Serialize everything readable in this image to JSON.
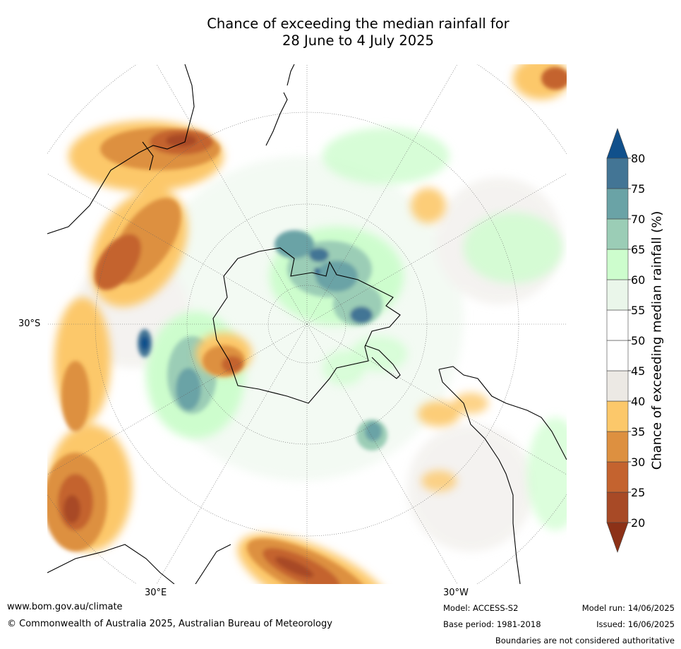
{
  "title_line1": "Chance of exceeding the median rainfall for",
  "title_line2": "28 June to 4 July 2025",
  "map": {
    "projection": "south-polar-stereographic",
    "graticule_labels": {
      "left": "30°S",
      "bottom_left": "30°E",
      "bottom_right": "30°W"
    }
  },
  "colorbar": {
    "label": "Chance of exceeding median rainfall (%)",
    "ticks": [
      "20",
      "25",
      "30",
      "35",
      "40",
      "45",
      "50",
      "55",
      "60",
      "65",
      "70",
      "75",
      "80"
    ],
    "bins": [
      {
        "from": 0,
        "to": 20,
        "color": "#8c3117"
      },
      {
        "from": 20,
        "to": 25,
        "color": "#a84a26"
      },
      {
        "from": 25,
        "to": 30,
        "color": "#c4632f"
      },
      {
        "from": 30,
        "to": 35,
        "color": "#dd9040"
      },
      {
        "from": 35,
        "to": 40,
        "color": "#fcc86a"
      },
      {
        "from": 40,
        "to": 45,
        "color": "#ece9e4"
      },
      {
        "from": 45,
        "to": 50,
        "color": "#ffffff"
      },
      {
        "from": 50,
        "to": 55,
        "color": "#ffffff"
      },
      {
        "from": 55,
        "to": 60,
        "color": "#eaf6ea"
      },
      {
        "from": 60,
        "to": 65,
        "color": "#cdfdcd"
      },
      {
        "from": 65,
        "to": 70,
        "color": "#9bcdb6"
      },
      {
        "from": 70,
        "to": 75,
        "color": "#6aa3a6"
      },
      {
        "from": 75,
        "to": 80,
        "color": "#437595"
      },
      {
        "from": 80,
        "to": 100,
        "color": "#11508b"
      }
    ]
  },
  "footer": {
    "website": "www.bom.gov.au/climate",
    "copyright": "© Commonwealth of Australia 2025, Australian Bureau of Meteorology",
    "model": "Model: ACCESS-S2",
    "base_period": "Base period: 1981-2018",
    "model_run": "Model run: 14/06/2025",
    "issued": "Issued: 16/06/2025",
    "disclaimer": "Boundaries are not considered authoritative"
  }
}
